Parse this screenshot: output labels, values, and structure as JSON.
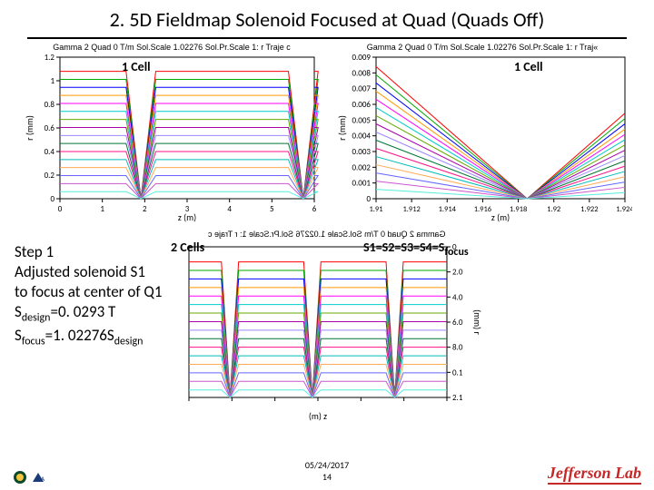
{
  "title": "2. 5D Fieldmap Solenoid Focused at Quad (Quads Off)",
  "chartA": {
    "title": "Gamma 2 Quad 0 T/m Sol.Scale 1.02276 Sol.Pr.Scale 1: r Traje c",
    "annotation": "1 Cell",
    "ylabel": "r (mm)",
    "xlabel": "z (m)",
    "ylim": [
      0,
      1.2
    ],
    "ytick_step": 0.2,
    "xlim": [
      0,
      6
    ],
    "xtick_step": 1,
    "series_colors": [
      "#ff0000",
      "#00aa00",
      "#0000ff",
      "#ff9900",
      "#ff00ff",
      "#00cccc",
      "#66aa00",
      "#aa00aa",
      "#9988ff",
      "#007733",
      "#ff1188",
      "#00bbbb",
      "#ffaa55",
      "#6666ff",
      "#cc55cc",
      "#55eedd"
    ],
    "v_lines_x": [
      1.91,
      5.74
    ],
    "background": "#ffffff",
    "axis_color": "#000000"
  },
  "chartB": {
    "title": "Gamma 2 Quad 0 T/m Sol.Scale 1.02276 Sol.Pr.Scale 1: r Traj«",
    "annotation": "1 Cell",
    "ylabel": "r (mm)",
    "xlabel": "z (m)",
    "ylim": [
      0,
      0.009
    ],
    "ytickvals": [
      0,
      0.001,
      0.002,
      0.003,
      0.004,
      0.005,
      0.006,
      0.007,
      0.008,
      0.009
    ],
    "xlim": [
      1.91,
      1.924
    ],
    "xtickvals": [
      1.91,
      1.912,
      1.914,
      1.916,
      1.918,
      1.92,
      1.922,
      1.924
    ],
    "series_colors": [
      "#ff0000",
      "#00aa00",
      "#0000ff",
      "#ff9900",
      "#ff00ff",
      "#00cccc",
      "#66aa00",
      "#aa00aa",
      "#9988ff",
      "#007733",
      "#ff1188",
      "#00bbbb",
      "#ffaa55",
      "#6666ff",
      "#cc55cc",
      "#55eedd"
    ],
    "background": "#ffffff",
    "axis_color": "#000000"
  },
  "chartC": {
    "title_flipped": "Gamma 2 Quad 0 T/m Sol.Scale 1.02276 Sol.Pr.Scale 1: r Traje c",
    "annotation_left": "2 Cells",
    "annotation_right_html": "S1=S2=S3=S4=S",
    "annotation_right_sub": "focus",
    "ylabel": "r (mm)",
    "xlabel": "z (m)",
    "ylim_flipped": [
      0,
      1.2
    ],
    "ytickvals_raw": [
      0,
      2,
      4,
      6,
      8,
      10,
      12
    ],
    "series_colors": [
      "#ff0000",
      "#00aa00",
      "#0000ff",
      "#ff9900",
      "#ff00ff",
      "#00cccc",
      "#66aa00",
      "#aa00aa",
      "#9988ff",
      "#007733",
      "#ff1188",
      "#00bbbb",
      "#ffaa55",
      "#6666ff",
      "#cc55cc",
      "#55eedd"
    ],
    "v_lines_x": [
      1.91,
      5.74,
      9.57
    ],
    "background": "#ffffff",
    "axis_color": "#000000"
  },
  "step_block": {
    "line1": "Step 1",
    "line2": "Adjusted solenoid S1",
    "line3": "to focus at center of Q1",
    "line4_pre": "S",
    "line4_sub1": "design",
    "line4_post": "=0. 0293 T",
    "line5_pre": "S",
    "line5_sub1": "focus",
    "line5_mid": "=1. 02276S",
    "line5_sub2": "design"
  },
  "footer": {
    "date": "05/24/2017",
    "page": "14",
    "brand": "Jefferson Lab"
  }
}
